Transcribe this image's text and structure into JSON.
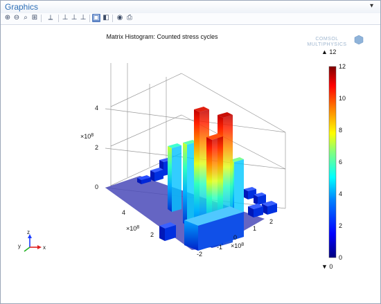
{
  "window": {
    "title": "Graphics",
    "menu_glyph": "▾"
  },
  "toolbar": {
    "buttons": [
      {
        "name": "zoom-in-icon",
        "glyph": "⊕"
      },
      {
        "name": "zoom-out-icon",
        "glyph": "⊖"
      },
      {
        "name": "zoom-box-icon",
        "glyph": "⌕"
      },
      {
        "name": "zoom-extents-icon",
        "glyph": "⊞"
      },
      {
        "name": "view-axis-icon",
        "glyph": "⟂"
      },
      {
        "name": "go-to-xy-view-icon",
        "glyph": "⊥"
      },
      {
        "name": "go-to-yz-view-icon",
        "glyph": "⊥"
      },
      {
        "name": "go-to-zx-view-icon",
        "glyph": "⊥"
      },
      {
        "name": "scene-light-icon",
        "glyph": "▣"
      },
      {
        "name": "transparency-icon",
        "glyph": "◧"
      },
      {
        "name": "snapshot-icon",
        "glyph": "◉"
      },
      {
        "name": "print-icon",
        "glyph": "⎙"
      }
    ]
  },
  "plot": {
    "title": "Matrix Histogram: Counted stress cycles",
    "logo_line1": "COMSOL",
    "logo_line2": "MULTIPHYSICS",
    "z_ticks": [
      "0",
      "2",
      "4"
    ],
    "z_multiplier": "×10",
    "z_multiplier_exp": "8",
    "y_ticks": [
      "2",
      "4"
    ],
    "y_multiplier": "×10",
    "y_multiplier_exp": "8",
    "x_ticks": [
      "-2",
      "-1",
      "0",
      "1",
      "2"
    ],
    "x_multiplier": "×10",
    "x_multiplier_exp": "8",
    "triad": {
      "x": "x",
      "y": "y",
      "z": "z"
    }
  },
  "colorbar": {
    "max_label": "▲ 12",
    "min_label": "▼ 0",
    "ticks": [
      "12",
      "10",
      "8",
      "6",
      "4",
      "2",
      "0"
    ],
    "min": 0,
    "max": 12,
    "colors": [
      "#00007f",
      "#0000ff",
      "#0080ff",
      "#00ffff",
      "#80ff80",
      "#ffff00",
      "#ff8000",
      "#ff0000",
      "#7f0000"
    ]
  },
  "chart_data": {
    "type": "heatmap",
    "title": "Matrix Histogram: Counted stress cycles",
    "color_range": [
      0,
      12
    ],
    "bars": [
      {
        "count": 12,
        "level": "max"
      },
      {
        "count": 11,
        "level": "high"
      },
      {
        "count": 10,
        "level": "high"
      },
      {
        "count": 7,
        "level": "mid"
      },
      {
        "count": 6,
        "level": "mid"
      },
      {
        "count": 4,
        "level": "low"
      },
      {
        "count": 3,
        "level": "low"
      },
      {
        "count": 2,
        "level": "low"
      },
      {
        "count": 1,
        "level": "min"
      }
    ]
  }
}
